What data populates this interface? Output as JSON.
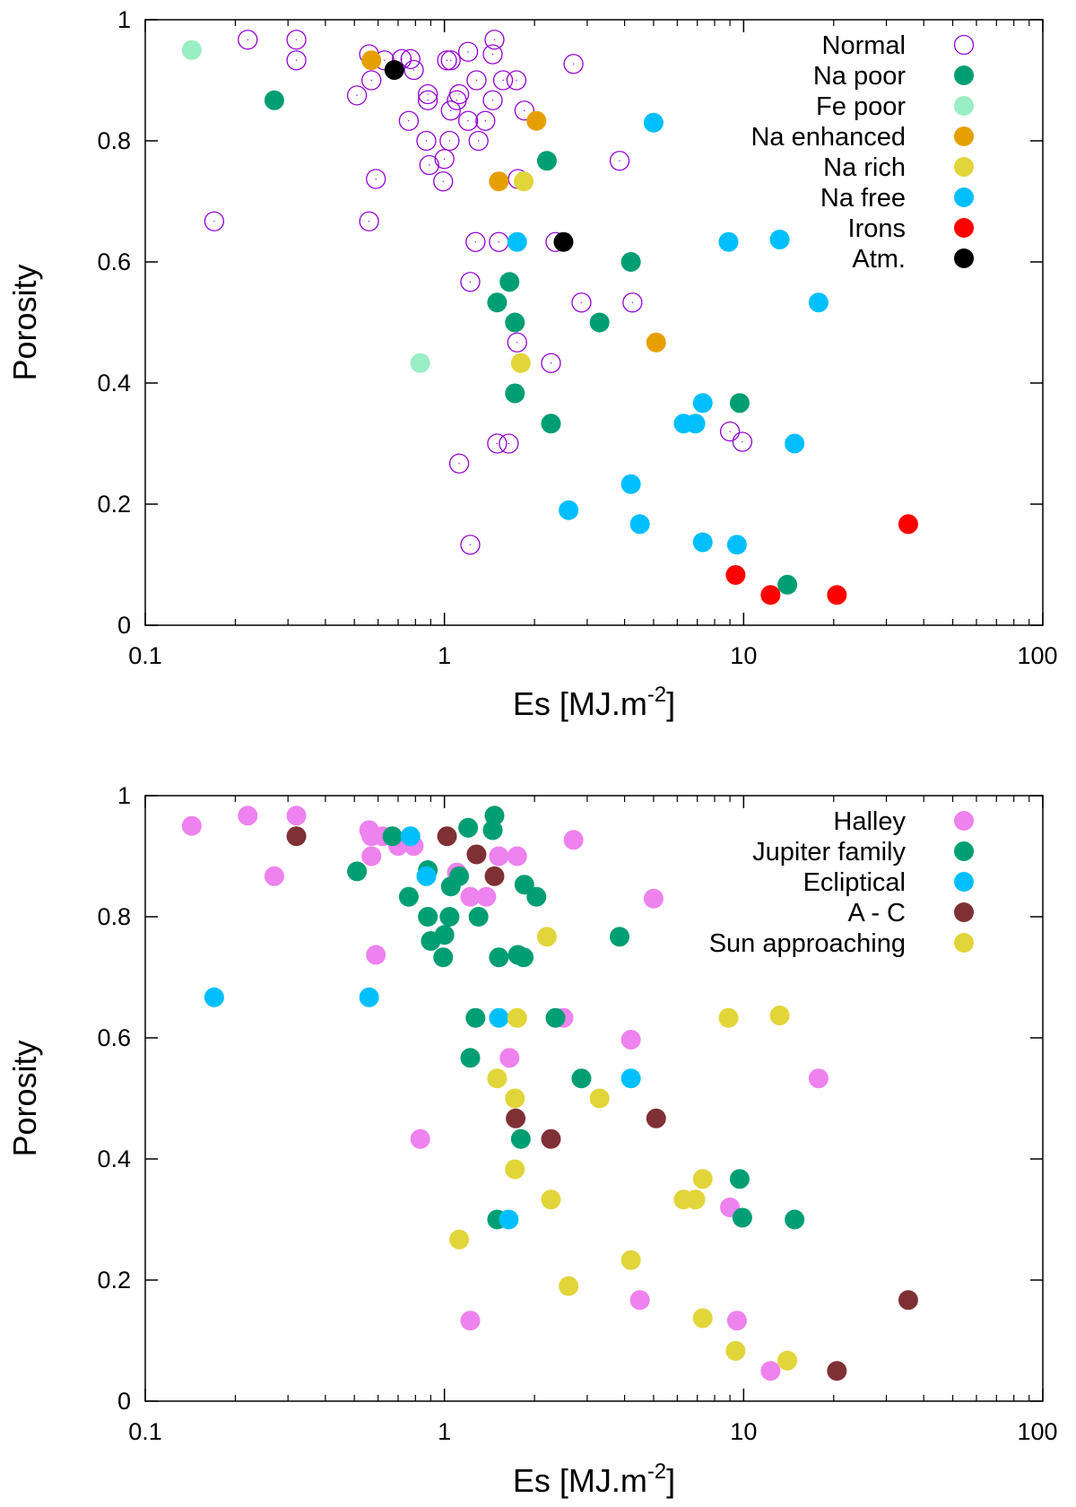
{
  "chart_data": [
    {
      "type": "scatter",
      "title": "",
      "xlabel": "Es [MJ.m",
      "xlabel_sup": "-2",
      "xlabel_end": "]",
      "ylabel": "Porosity",
      "xscale": "log",
      "xlim": [
        0.1,
        100
      ],
      "ylim": [
        0,
        1
      ],
      "grid": false,
      "legend_position": "top-right",
      "xticks": [
        0.1,
        1,
        10,
        100
      ],
      "xtick_labels": [
        "0.1",
        "1",
        "10",
        "100"
      ],
      "yticks": [
        0,
        0.2,
        0.4,
        0.6,
        0.8,
        1
      ],
      "ytick_labels": [
        "0",
        "0.2",
        "0.4",
        "0.6",
        "0.8",
        "1"
      ],
      "series": [
        {
          "name": "Normal",
          "color": "#9400D3",
          "hollow": true,
          "points": [
            [
              0.22,
              0.967
            ],
            [
              0.32,
              0.967
            ],
            [
              0.32,
              0.933
            ],
            [
              0.56,
              0.943
            ],
            [
              0.57,
              0.9
            ],
            [
              0.63,
              0.933
            ],
            [
              0.72,
              0.935
            ],
            [
              0.77,
              0.935
            ],
            [
              0.79,
              0.917
            ],
            [
              0.51,
              0.875
            ],
            [
              0.59,
              0.737
            ],
            [
              0.56,
              0.667
            ],
            [
              0.17,
              0.667
            ],
            [
              0.76,
              0.833
            ],
            [
              0.88,
              0.867
            ],
            [
              0.88,
              0.877
            ],
            [
              0.87,
              0.8
            ],
            [
              0.89,
              0.76
            ],
            [
              0.99,
              0.733
            ],
            [
              1.0,
              0.77
            ],
            [
              1.02,
              0.933
            ],
            [
              1.05,
              0.933
            ],
            [
              1.05,
              0.85
            ],
            [
              1.04,
              0.8
            ],
            [
              1.1,
              0.867
            ],
            [
              1.12,
              0.877
            ],
            [
              1.2,
              0.947
            ],
            [
              1.2,
              0.833
            ],
            [
              1.28,
              0.9
            ],
            [
              1.3,
              0.8
            ],
            [
              1.37,
              0.833
            ],
            [
              1.45,
              0.867
            ],
            [
              1.45,
              0.943
            ],
            [
              1.47,
              0.967
            ],
            [
              1.57,
              0.9
            ],
            [
              1.74,
              0.9
            ],
            [
              1.85,
              0.85
            ],
            [
              1.76,
              0.737
            ],
            [
              2.7,
              0.927
            ],
            [
              3.85,
              0.767
            ],
            [
              1.27,
              0.633
            ],
            [
              1.52,
              0.633
            ],
            [
              2.35,
              0.633
            ],
            [
              1.22,
              0.567
            ],
            [
              2.87,
              0.533
            ],
            [
              4.25,
              0.533
            ],
            [
              1.75,
              0.467
            ],
            [
              2.27,
              0.433
            ],
            [
              1.12,
              0.267
            ],
            [
              1.5,
              0.3
            ],
            [
              1.64,
              0.3
            ],
            [
              1.22,
              0.133
            ],
            [
              9.0,
              0.32
            ],
            [
              9.9,
              0.303
            ]
          ]
        },
        {
          "name": "Na poor",
          "color": "#009E73",
          "hollow": false,
          "points": [
            [
              0.27,
              0.867
            ],
            [
              2.2,
              0.767
            ],
            [
              4.2,
              0.6
            ],
            [
              1.65,
              0.567
            ],
            [
              1.5,
              0.533
            ],
            [
              1.72,
              0.5
            ],
            [
              3.3,
              0.5
            ],
            [
              1.72,
              0.383
            ],
            [
              2.27,
              0.333
            ],
            [
              9.7,
              0.367
            ],
            [
              14.0,
              0.067
            ]
          ]
        },
        {
          "name": "Fe poor",
          "color": "#99EEC4",
          "hollow": false,
          "points": [
            [
              0.143,
              0.95
            ],
            [
              0.83,
              0.433
            ]
          ]
        },
        {
          "name": "Na enhanced",
          "color": "#E69F00",
          "hollow": false,
          "points": [
            [
              0.57,
              0.933
            ],
            [
              2.03,
              0.833
            ],
            [
              1.52,
              0.733
            ],
            [
              5.1,
              0.467
            ]
          ]
        },
        {
          "name": "Na rich",
          "color": "#E1D539",
          "hollow": false,
          "points": [
            [
              1.84,
              0.733
            ],
            [
              1.8,
              0.433
            ]
          ]
        },
        {
          "name": "Na free",
          "color": "#00BFFF",
          "hollow": false,
          "points": [
            [
              5.0,
              0.83
            ],
            [
              1.75,
              0.633
            ],
            [
              8.9,
              0.633
            ],
            [
              13.2,
              0.637
            ],
            [
              17.8,
              0.533
            ],
            [
              7.3,
              0.367
            ],
            [
              6.3,
              0.333
            ],
            [
              6.9,
              0.333
            ],
            [
              14.8,
              0.3
            ],
            [
              4.2,
              0.233
            ],
            [
              2.6,
              0.19
            ],
            [
              4.5,
              0.167
            ],
            [
              7.3,
              0.137
            ],
            [
              9.5,
              0.133
            ]
          ]
        },
        {
          "name": "Irons",
          "color": "#FF0000",
          "hollow": false,
          "points": [
            [
              9.4,
              0.083
            ],
            [
              12.3,
              0.05
            ],
            [
              20.5,
              0.05
            ],
            [
              35.5,
              0.167
            ]
          ]
        },
        {
          "name": "Atm.",
          "color": "#000000",
          "hollow": false,
          "points": [
            [
              0.68,
              0.917
            ],
            [
              2.5,
              0.633
            ]
          ]
        }
      ]
    },
    {
      "type": "scatter",
      "title": "",
      "xlabel": "Es [MJ.m",
      "xlabel_sup": "-2",
      "xlabel_end": "]",
      "ylabel": "Porosity",
      "xscale": "log",
      "xlim": [
        0.1,
        100
      ],
      "ylim": [
        0,
        1
      ],
      "grid": false,
      "legend_position": "top-right",
      "xticks": [
        0.1,
        1,
        10,
        100
      ],
      "xtick_labels": [
        "0.1",
        "1",
        "10",
        "100"
      ],
      "yticks": [
        0,
        0.2,
        0.4,
        0.6,
        0.8,
        1
      ],
      "ytick_labels": [
        "0",
        "0.2",
        "0.4",
        "0.6",
        "0.8",
        "1"
      ],
      "series": [
        {
          "name": "Halley",
          "color": "#EE82EE",
          "hollow": false,
          "points": [
            [
              0.143,
              0.95
            ],
            [
              0.22,
              0.967
            ],
            [
              0.32,
              0.967
            ],
            [
              0.27,
              0.867
            ],
            [
              0.56,
              0.943
            ],
            [
              0.57,
              0.933
            ],
            [
              0.62,
              0.933
            ],
            [
              0.57,
              0.9
            ],
            [
              0.7,
              0.917
            ],
            [
              0.79,
              0.917
            ],
            [
              0.59,
              0.737
            ],
            [
              1.1,
              0.873
            ],
            [
              1.52,
              0.9
            ],
            [
              1.75,
              0.9
            ],
            [
              1.22,
              0.833
            ],
            [
              1.38,
              0.833
            ],
            [
              2.7,
              0.927
            ],
            [
              5.0,
              0.83
            ],
            [
              2.5,
              0.633
            ],
            [
              4.2,
              0.597
            ],
            [
              1.65,
              0.567
            ],
            [
              17.8,
              0.533
            ],
            [
              0.83,
              0.433
            ],
            [
              9.0,
              0.32
            ],
            [
              4.5,
              0.167
            ],
            [
              9.5,
              0.133
            ],
            [
              12.3,
              0.05
            ],
            [
              1.22,
              0.133
            ]
          ]
        },
        {
          "name": "Jupiter family",
          "color": "#009E73",
          "hollow": false,
          "points": [
            [
              0.51,
              0.875
            ],
            [
              0.67,
              0.933
            ],
            [
              0.76,
              0.833
            ],
            [
              0.88,
              0.877
            ],
            [
              0.88,
              0.8
            ],
            [
              0.9,
              0.76
            ],
            [
              1.0,
              0.77
            ],
            [
              0.99,
              0.733
            ],
            [
              1.05,
              0.85
            ],
            [
              1.04,
              0.8
            ],
            [
              1.12,
              0.867
            ],
            [
              1.2,
              0.947
            ],
            [
              1.3,
              0.8
            ],
            [
              1.45,
              0.943
            ],
            [
              1.47,
              0.967
            ],
            [
              1.85,
              0.853
            ],
            [
              2.03,
              0.833
            ],
            [
              1.52,
              0.733
            ],
            [
              1.84,
              0.733
            ],
            [
              1.76,
              0.737
            ],
            [
              3.85,
              0.767
            ],
            [
              1.27,
              0.633
            ],
            [
              2.35,
              0.633
            ],
            [
              1.22,
              0.567
            ],
            [
              2.87,
              0.533
            ],
            [
              1.8,
              0.433
            ],
            [
              1.5,
              0.3
            ],
            [
              9.7,
              0.367
            ],
            [
              9.9,
              0.303
            ],
            [
              14.8,
              0.3
            ]
          ]
        },
        {
          "name": "Ecliptical",
          "color": "#00BFFF",
          "hollow": false,
          "points": [
            [
              0.17,
              0.667
            ],
            [
              0.56,
              0.667
            ],
            [
              0.77,
              0.933
            ],
            [
              0.87,
              0.867
            ],
            [
              1.52,
              0.633
            ],
            [
              4.2,
              0.533
            ],
            [
              1.64,
              0.3
            ]
          ]
        },
        {
          "name": "A - C",
          "color": "#7F3035",
          "hollow": false,
          "points": [
            [
              0.32,
              0.933
            ],
            [
              1.02,
              0.933
            ],
            [
              1.28,
              0.903
            ],
            [
              1.47,
              0.867
            ],
            [
              1.73,
              0.467
            ],
            [
              5.1,
              0.467
            ],
            [
              2.27,
              0.433
            ],
            [
              35.5,
              0.167
            ],
            [
              20.5,
              0.05
            ]
          ]
        },
        {
          "name": "Sun approaching",
          "color": "#E1D539",
          "hollow": false,
          "points": [
            [
              2.2,
              0.767
            ],
            [
              1.75,
              0.633
            ],
            [
              8.9,
              0.633
            ],
            [
              13.2,
              0.637
            ],
            [
              1.5,
              0.533
            ],
            [
              1.72,
              0.5
            ],
            [
              3.3,
              0.5
            ],
            [
              1.72,
              0.383
            ],
            [
              2.27,
              0.333
            ],
            [
              7.3,
              0.367
            ],
            [
              6.3,
              0.333
            ],
            [
              6.9,
              0.333
            ],
            [
              4.2,
              0.233
            ],
            [
              1.12,
              0.267
            ],
            [
              2.6,
              0.19
            ],
            [
              7.3,
              0.137
            ],
            [
              9.4,
              0.083
            ],
            [
              14.0,
              0.067
            ]
          ]
        }
      ]
    }
  ]
}
